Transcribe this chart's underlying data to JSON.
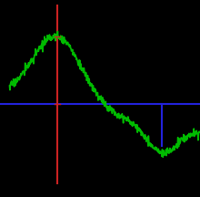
{
  "background_color": "#000000",
  "curve_color": "#00bb00",
  "curve_linewidth": 1.2,
  "axis_x_color": "#2222dd",
  "axis_y_color": "#cc2222",
  "axis_linewidth": 1.5,
  "xmin": 0.0,
  "xmax": 10.0,
  "ymin": -4.0,
  "ymax": 4.5,
  "c_x": 2.5,
  "d_x": 8.0,
  "x_axis_y": 0.0,
  "noise_amplitude": 0.09,
  "noise_seed": 17
}
